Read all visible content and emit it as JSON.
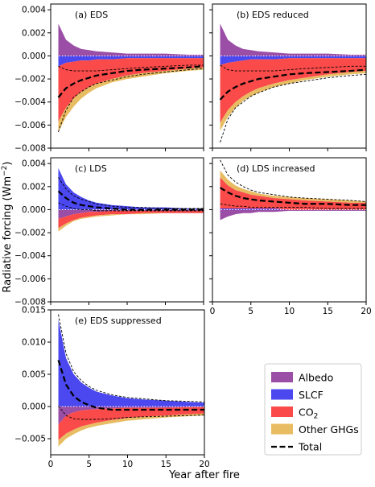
{
  "figure": {
    "ylabel": "Radiative forcing (Wm",
    "ylabel_sup": "−2",
    "ylabel_close": ")",
    "xlabel": "Year after fire"
  },
  "legend": {
    "placement": "bottom-right",
    "entries": [
      {
        "key": "albedo",
        "label": "Albedo",
        "sub": "",
        "color": "#9b4ea6",
        "kind": "patch"
      },
      {
        "key": "slcf",
        "label": "SLCF",
        "sub": "",
        "color": "#4b48f0",
        "kind": "patch"
      },
      {
        "key": "co2",
        "label": "CO",
        "sub": "2",
        "color": "#fa4a4a",
        "kind": "patch"
      },
      {
        "key": "ghg",
        "label": "Other GHGs",
        "sub": "",
        "color": "#e8bc62",
        "kind": "patch"
      },
      {
        "key": "total",
        "label": "Total",
        "sub": "",
        "color": "#000000",
        "kind": "dashed-line"
      }
    ]
  },
  "chart_data": [
    {
      "type": "area",
      "title": "(a) EDS",
      "xlim": [
        0,
        20
      ],
      "ylim": [
        -0.008,
        0.0045
      ],
      "yticks": [
        "0.004",
        "0.002",
        "0.000",
        "−0.002",
        "−0.004",
        "−0.006",
        "−0.008"
      ],
      "ytick_values": [
        0.004,
        0.002,
        0.0,
        -0.002,
        -0.004,
        -0.006,
        -0.008
      ],
      "xticks": [],
      "x": [
        1,
        2,
        3,
        4,
        5,
        6,
        8,
        10,
        12,
        15,
        18,
        20
      ],
      "series": [
        {
          "key": "albedo",
          "upper": [
            0.0028,
            0.0014,
            0.0009,
            0.0006,
            0.0005,
            0.0004,
            0.0003,
            0.0002,
            0.0002,
            0.0002,
            0.0001,
            0.0001
          ],
          "lower": [
            0,
            0,
            0,
            0,
            0,
            0,
            0,
            0,
            0,
            0,
            0,
            0
          ]
        },
        {
          "key": "slcf",
          "upper": [
            0,
            0,
            0,
            0,
            0,
            0,
            0,
            0,
            0,
            0,
            0,
            0
          ],
          "lower": [
            -0.0009,
            -0.0006,
            -0.0005,
            -0.0004,
            -0.0004,
            -0.0003,
            -0.0003,
            -0.0002,
            -0.0002,
            -0.0002,
            -0.0002,
            -0.0002
          ]
        },
        {
          "key": "co2",
          "upper": [
            -0.0009,
            -0.0006,
            -0.0005,
            -0.0004,
            -0.0004,
            -0.0003,
            -0.0003,
            -0.0002,
            -0.0002,
            -0.0002,
            -0.0002,
            -0.0002
          ],
          "lower": [
            -0.0057,
            -0.0045,
            -0.0037,
            -0.0031,
            -0.0027,
            -0.0024,
            -0.002,
            -0.0017,
            -0.0015,
            -0.0013,
            -0.0011,
            -0.001
          ]
        },
        {
          "key": "ghg",
          "upper": [
            -0.0057,
            -0.0045,
            -0.0037,
            -0.0031,
            -0.0027,
            -0.0024,
            -0.002,
            -0.0017,
            -0.0015,
            -0.0013,
            -0.0011,
            -0.001
          ],
          "lower": [
            -0.0066,
            -0.0053,
            -0.0044,
            -0.0037,
            -0.0032,
            -0.0028,
            -0.0023,
            -0.002,
            -0.0018,
            -0.0015,
            -0.0013,
            -0.0012
          ]
        }
      ],
      "total": [
        -0.0036,
        -0.0028,
        -0.0024,
        -0.0021,
        -0.0019,
        -0.0017,
        -0.0015,
        -0.0013,
        -0.0012,
        -0.0011,
        -0.001,
        -0.0009
      ],
      "bounds": [
        [
          -0.0009,
          -0.0012,
          -0.0013,
          -0.0013,
          -0.0013,
          -0.0013,
          -0.0012,
          -0.0011,
          -0.001,
          -0.0009,
          -0.0008,
          -0.0008
        ],
        [
          -0.0066,
          -0.0047,
          -0.0036,
          -0.0031,
          -0.0027,
          -0.0024,
          -0.0021,
          -0.0018,
          -0.0016,
          -0.0014,
          -0.0012,
          -0.0011
        ]
      ],
      "albedo_mid": [
        0,
        0,
        0,
        0,
        0,
        0,
        0,
        0,
        0,
        0,
        0,
        0
      ]
    },
    {
      "type": "area",
      "title": "(b) EDS reduced",
      "xlim": [
        0,
        20
      ],
      "ylim": [
        -0.008,
        0.0045
      ],
      "yticks": [],
      "ytick_values": [
        0.004,
        0.002,
        0.0,
        -0.002,
        -0.004,
        -0.006,
        -0.008
      ],
      "xticks": [],
      "x": [
        1,
        2,
        3,
        4,
        5,
        6,
        8,
        10,
        12,
        15,
        18,
        20
      ],
      "series": [
        {
          "key": "albedo",
          "upper": [
            0.0028,
            0.0014,
            0.0009,
            0.0006,
            0.0005,
            0.0004,
            0.0003,
            0.0002,
            0.0002,
            0.0002,
            0.0001,
            0.0001
          ],
          "lower": [
            0,
            0,
            0,
            0,
            0,
            0,
            0,
            0,
            0,
            0,
            0,
            0
          ]
        },
        {
          "key": "slcf",
          "upper": [
            0,
            0,
            0,
            0,
            0,
            0,
            0,
            0,
            0,
            0,
            0,
            0
          ],
          "lower": [
            -0.0008,
            -0.0006,
            -0.0005,
            -0.0004,
            -0.0003,
            -0.0003,
            -0.0003,
            -0.0002,
            -0.0002,
            -0.0002,
            -0.0002,
            -0.0002
          ]
        },
        {
          "key": "co2",
          "upper": [
            -0.0008,
            -0.0006,
            -0.0005,
            -0.0004,
            -0.0003,
            -0.0003,
            -0.0003,
            -0.0002,
            -0.0002,
            -0.0002,
            -0.0002,
            -0.0002
          ],
          "lower": [
            -0.0058,
            -0.0047,
            -0.004,
            -0.0035,
            -0.0031,
            -0.0028,
            -0.0024,
            -0.0021,
            -0.0019,
            -0.0016,
            -0.0014,
            -0.0013
          ]
        },
        {
          "key": "ghg",
          "upper": [
            -0.0058,
            -0.0047,
            -0.004,
            -0.0035,
            -0.0031,
            -0.0028,
            -0.0024,
            -0.0021,
            -0.0019,
            -0.0016,
            -0.0014,
            -0.0013
          ],
          "lower": [
            -0.0065,
            -0.0053,
            -0.0045,
            -0.0039,
            -0.0035,
            -0.0032,
            -0.0027,
            -0.0024,
            -0.0021,
            -0.0018,
            -0.0016,
            -0.0015
          ]
        }
      ],
      "total": [
        -0.0038,
        -0.0031,
        -0.0027,
        -0.0024,
        -0.0022,
        -0.002,
        -0.0018,
        -0.0016,
        -0.0015,
        -0.0014,
        -0.0013,
        -0.0012
      ],
      "bounds": [
        [
          -0.0008,
          -0.0012,
          -0.0013,
          -0.0013,
          -0.0013,
          -0.0013,
          -0.0013,
          -0.0012,
          -0.0011,
          -0.001,
          -0.0009,
          -0.0009
        ],
        [
          -0.0075,
          -0.0055,
          -0.0045,
          -0.004,
          -0.0035,
          -0.0032,
          -0.0027,
          -0.0024,
          -0.0022,
          -0.0019,
          -0.0017,
          -0.0016
        ]
      ],
      "albedo_mid": [
        0,
        0,
        0,
        0,
        0,
        0,
        0,
        0,
        0,
        0,
        0,
        0
      ]
    },
    {
      "type": "area",
      "title": "(c) LDS",
      "xlim": [
        0,
        20
      ],
      "ylim": [
        -0.008,
        0.0045
      ],
      "yticks": [
        "0.004",
        "0.002",
        "0.000",
        "−0.002",
        "−0.004",
        "−0.006",
        "−0.008"
      ],
      "ytick_values": [
        0.004,
        0.002,
        0.0,
        -0.002,
        -0.004,
        -0.006,
        -0.008
      ],
      "xticks": [],
      "x": [
        1,
        2,
        3,
        4,
        5,
        6,
        8,
        10,
        12,
        15,
        18,
        20
      ],
      "series": [
        {
          "key": "slcf",
          "upper": [
            0.0036,
            0.0022,
            0.0015,
            0.0011,
            0.0008,
            0.0006,
            0.0004,
            0.0003,
            0.0002,
            0.0002,
            0.0001,
            0.0001
          ],
          "lower": [
            0,
            0,
            0,
            0,
            0,
            0,
            0,
            0,
            0,
            0,
            0,
            0
          ]
        },
        {
          "key": "albedo",
          "upper": [
            0,
            0,
            0,
            0,
            0,
            0,
            0,
            0,
            0,
            0,
            0,
            0
          ],
          "lower": [
            -0.0008,
            -0.0006,
            -0.0004,
            -0.0003,
            -0.0002,
            -0.0002,
            -0.0001,
            -0.0001,
            -0.0001,
            -0.0001,
            -0.0001,
            -0.0001
          ]
        },
        {
          "key": "co2",
          "upper": [
            -0.0008,
            -0.0006,
            -0.0004,
            -0.0003,
            -0.0002,
            -0.0002,
            -0.0001,
            -0.0001,
            -0.0001,
            -0.0001,
            -0.0001,
            -0.0001
          ],
          "lower": [
            -0.0016,
            -0.0012,
            -0.0009,
            -0.0007,
            -0.0006,
            -0.0005,
            -0.0004,
            -0.0004,
            -0.0003,
            -0.0003,
            -0.0003,
            -0.0003
          ]
        },
        {
          "key": "ghg",
          "upper": [
            -0.0016,
            -0.0012,
            -0.0009,
            -0.0007,
            -0.0006,
            -0.0005,
            -0.0004,
            -0.0004,
            -0.0003,
            -0.0003,
            -0.0003,
            -0.0003
          ],
          "lower": [
            -0.0019,
            -0.0014,
            -0.001,
            -0.0008,
            -0.0007,
            -0.0006,
            -0.0005,
            -0.0004,
            -0.0004,
            -0.0003,
            -0.0003,
            -0.0003
          ]
        }
      ],
      "total": [
        0.0016,
        0.001,
        0.0006,
        0.0004,
        0.0003,
        0.0002,
        0.0001,
        0.0,
        0.0,
        0.0,
        0.0,
        0.0
      ],
      "bounds": [
        [
          0.0028,
          0.0018,
          0.0012,
          0.0009,
          0.0007,
          0.0005,
          0.0003,
          0.0002,
          0.0002,
          0.0001,
          0.0001,
          0.0001
        ],
        [
          0.0006,
          0.0003,
          0.0001,
          0.0,
          0.0,
          -0.0001,
          -0.0001,
          -0.0001,
          -0.0001,
          -0.0001,
          -0.0001,
          -0.0001
        ]
      ],
      "albedo_mid": [
        0,
        0,
        0,
        0,
        0,
        0,
        0,
        0,
        0,
        0,
        0,
        0
      ]
    },
    {
      "type": "area",
      "title": "(d) LDS increased",
      "xlim": [
        0,
        20
      ],
      "ylim": [
        -0.008,
        0.0045
      ],
      "yticks": [],
      "ytick_values": [
        0.004,
        0.002,
        0.0,
        -0.002,
        -0.004,
        -0.006,
        -0.008
      ],
      "xticks": [
        "0",
        "5",
        "10",
        "15",
        "20"
      ],
      "x": [
        1,
        2,
        3,
        4,
        5,
        6,
        8,
        10,
        12,
        15,
        18,
        20
      ],
      "series": [
        {
          "key": "ghg",
          "upper": [
            0.0034,
            0.0026,
            0.0021,
            0.0018,
            0.0016,
            0.0014,
            0.0012,
            0.0011,
            0.001,
            0.0009,
            0.0008,
            0.0007
          ],
          "lower": [
            0.0028,
            0.0021,
            0.0017,
            0.0015,
            0.0013,
            0.0012,
            0.001,
            0.0009,
            0.0008,
            0.0007,
            0.0006,
            0.0006
          ]
        },
        {
          "key": "co2",
          "upper": [
            0.0028,
            0.0021,
            0.0017,
            0.0015,
            0.0013,
            0.0012,
            0.001,
            0.0009,
            0.0008,
            0.0007,
            0.0006,
            0.0006
          ],
          "lower": [
            0.0001,
            0.0001,
            0.0001,
            0.0001,
            0.0001,
            0.0001,
            0.0001,
            0.0,
            0.0,
            0.0,
            0.0,
            0.0
          ]
        },
        {
          "key": "slcf",
          "upper": [
            0.0001,
            0.0001,
            0.0001,
            0.0001,
            0.0001,
            0.0001,
            0.0001,
            0.0,
            0.0,
            0.0,
            0.0,
            0.0
          ],
          "lower": [
            0,
            0,
            0,
            0,
            0,
            0,
            0,
            0,
            0,
            0,
            0,
            0
          ]
        },
        {
          "key": "albedo",
          "upper": [
            0,
            0,
            0,
            0,
            0,
            0,
            0,
            0,
            0,
            0,
            0,
            0
          ],
          "lower": [
            -0.0009,
            -0.0006,
            -0.0004,
            -0.0003,
            -0.0003,
            -0.0002,
            -0.0002,
            -0.0001,
            -0.0001,
            -0.0001,
            -0.0001,
            -0.0001
          ]
        }
      ],
      "total": [
        0.0019,
        0.0015,
        0.0012,
        0.001,
        0.0009,
        0.0008,
        0.0007,
        0.0006,
        0.0005,
        0.0005,
        0.0004,
        0.0004
      ],
      "bounds": [
        [
          0.0043,
          0.003,
          0.0024,
          0.002,
          0.0017,
          0.0015,
          0.0013,
          0.0011,
          0.001,
          0.0009,
          0.0008,
          0.0007
        ],
        [
          0.0005,
          0.0004,
          0.0003,
          0.0003,
          0.0002,
          0.0002,
          0.0002,
          0.0002,
          0.0002,
          0.0001,
          0.0001,
          0.0001
        ]
      ],
      "albedo_mid": [
        0,
        0,
        0,
        0,
        0,
        0,
        0,
        0,
        0,
        0,
        0,
        0
      ]
    },
    {
      "type": "area",
      "title": "(e) EDS suppressed",
      "xlim": [
        0,
        20
      ],
      "ylim": [
        -0.0075,
        0.015
      ],
      "yticks": [
        "0.015",
        "0.010",
        "0.005",
        "0.000",
        "−0.005"
      ],
      "ytick_values": [
        0.015,
        0.01,
        0.005,
        0.0,
        -0.005
      ],
      "xticks": [
        "0",
        "5",
        "10",
        "15",
        "20"
      ],
      "x": [
        1,
        2,
        3,
        4,
        5,
        6,
        8,
        10,
        12,
        15,
        18,
        20
      ],
      "series": [
        {
          "key": "slcf",
          "upper": [
            0.0135,
            0.0075,
            0.005,
            0.0037,
            0.0029,
            0.0023,
            0.0017,
            0.0013,
            0.0011,
            0.0009,
            0.0007,
            0.0006
          ],
          "lower": [
            0,
            0,
            0,
            0,
            0,
            0,
            0,
            0,
            0,
            0,
            0,
            0
          ]
        },
        {
          "key": "albedo",
          "upper": [
            0,
            0,
            0,
            0,
            0,
            0,
            0,
            0,
            0,
            0,
            0,
            0
          ],
          "lower": [
            -0.0028,
            -0.0014,
            -0.0009,
            -0.0006,
            -0.0005,
            -0.0004,
            -0.0003,
            -0.0002,
            -0.0002,
            -0.0002,
            -0.0001,
            -0.0001
          ]
        },
        {
          "key": "co2",
          "upper": [
            -0.0028,
            -0.0014,
            -0.0009,
            -0.0006,
            -0.0005,
            -0.0004,
            -0.0003,
            -0.0002,
            -0.0002,
            -0.0002,
            -0.0001,
            -0.0001
          ],
          "lower": [
            -0.0052,
            -0.0042,
            -0.0036,
            -0.0031,
            -0.0028,
            -0.0025,
            -0.0021,
            -0.0018,
            -0.0016,
            -0.0014,
            -0.0012,
            -0.0011
          ]
        },
        {
          "key": "ghg",
          "upper": [
            -0.0052,
            -0.0042,
            -0.0036,
            -0.0031,
            -0.0028,
            -0.0025,
            -0.0021,
            -0.0018,
            -0.0016,
            -0.0014,
            -0.0012,
            -0.0011
          ],
          "lower": [
            -0.0062,
            -0.005,
            -0.0043,
            -0.0037,
            -0.0033,
            -0.003,
            -0.0026,
            -0.0022,
            -0.002,
            -0.0017,
            -0.0015,
            -0.0014
          ]
        }
      ],
      "total": [
        0.0072,
        0.0034,
        0.0016,
        0.0007,
        0.0002,
        -0.0002,
        -0.0005,
        -0.0005,
        -0.0005,
        -0.0005,
        -0.0005,
        -0.0005
      ],
      "bounds": [
        [
          0.0143,
          0.0082,
          0.0054,
          0.004,
          0.0031,
          0.0025,
          0.0018,
          0.0014,
          0.0012,
          0.0009,
          0.0008,
          0.0007
        ],
        [
          0.0001,
          -0.0014,
          -0.0019,
          -0.002,
          -0.002,
          -0.002,
          -0.0019,
          -0.0017,
          -0.0016,
          -0.0015,
          -0.0014,
          -0.0013
        ]
      ],
      "albedo_mid": [
        0,
        0,
        0,
        0,
        0,
        0,
        0,
        0,
        0,
        0,
        0,
        0
      ]
    }
  ]
}
